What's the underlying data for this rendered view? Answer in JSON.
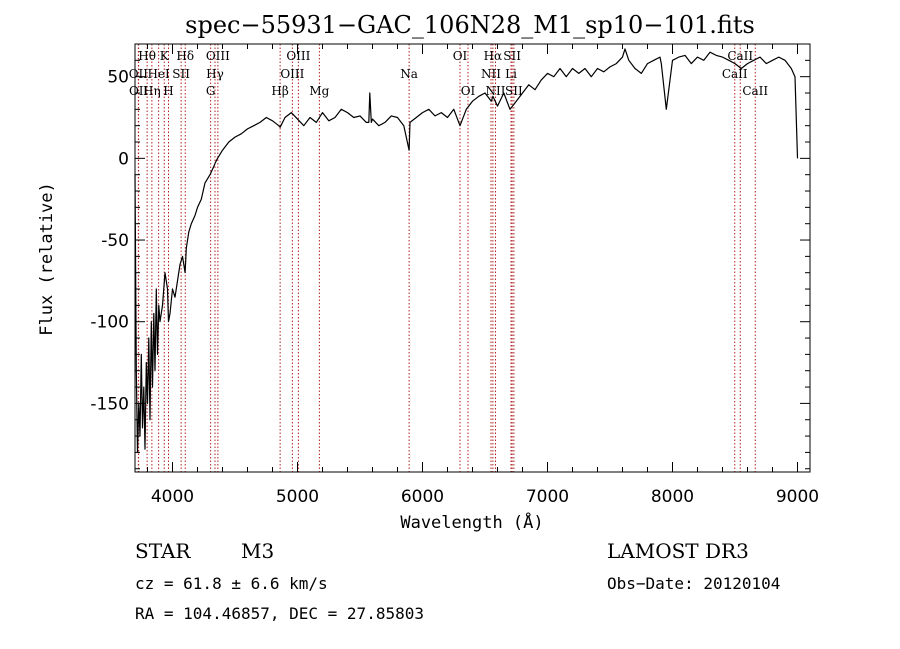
{
  "chart_data": {
    "type": "line",
    "title": "spec−55931−GAC_106N28_M1_sp10−101.fits",
    "xlabel": "Wavelength (Å)",
    "ylabel": "Flux (relative)",
    "xlim": [
      3700,
      9100
    ],
    "ylim": [
      -192,
      70
    ],
    "x_ticks": [
      4000,
      5000,
      6000,
      7000,
      8000,
      9000
    ],
    "y_ticks": [
      -150,
      -100,
      -50,
      0,
      50
    ],
    "series": [
      {
        "color": "#000000",
        "x": [
          3700,
          3710,
          3720,
          3730,
          3740,
          3750,
          3760,
          3770,
          3780,
          3790,
          3800,
          3810,
          3820,
          3830,
          3840,
          3850,
          3860,
          3870,
          3880,
          3890,
          3900,
          3920,
          3940,
          3960,
          3968,
          3980,
          4000,
          4020,
          4040,
          4060,
          4080,
          4101,
          4110,
          4130,
          4150,
          4180,
          4200,
          4230,
          4260,
          4300,
          4330,
          4340,
          4360,
          4400,
          4450,
          4500,
          4550,
          4600,
          4650,
          4700,
          4750,
          4800,
          4850,
          4861,
          4900,
          4950,
          5000,
          5050,
          5100,
          5150,
          5200,
          5250,
          5300,
          5350,
          5400,
          5450,
          5500,
          5550,
          5570,
          5578,
          5590,
          5600,
          5650,
          5700,
          5750,
          5800,
          5850,
          5893,
          5900,
          5950,
          6000,
          6050,
          6100,
          6150,
          6200,
          6250,
          6300,
          6350,
          6400,
          6450,
          6500,
          6550,
          6563,
          6600,
          6650,
          6700,
          6750,
          6800,
          6850,
          6900,
          6950,
          7000,
          7050,
          7100,
          7150,
          7200,
          7250,
          7300,
          7350,
          7400,
          7450,
          7500,
          7550,
          7600,
          7620,
          7650,
          7700,
          7750,
          7800,
          7850,
          7900,
          7910,
          7950,
          8000,
          8050,
          8100,
          8150,
          8200,
          8250,
          8300,
          8350,
          8400,
          8450,
          8500,
          8550,
          8600,
          8650,
          8700,
          8750,
          8800,
          8850,
          8900,
          8950,
          8980,
          9000
        ],
        "y": [
          -10,
          -130,
          -180,
          -150,
          -170,
          -120,
          -165,
          -140,
          -178,
          -125,
          -150,
          -110,
          -160,
          -100,
          -140,
          -95,
          -130,
          -80,
          -120,
          -90,
          -100,
          -90,
          -70,
          -80,
          -100,
          -95,
          -80,
          -85,
          -75,
          -65,
          -60,
          -70,
          -55,
          -45,
          -40,
          -35,
          -30,
          -25,
          -15,
          -10,
          -5,
          -3,
          0,
          5,
          10,
          13,
          15,
          18,
          20,
          22,
          25,
          23,
          20,
          19,
          25,
          28,
          24,
          20,
          25,
          22,
          28,
          23,
          25,
          30,
          28,
          25,
          26,
          22,
          22,
          40,
          22,
          24,
          20,
          22,
          26,
          25,
          20,
          5,
          22,
          25,
          28,
          30,
          26,
          28,
          25,
          30,
          20,
          30,
          35,
          38,
          40,
          35,
          38,
          32,
          40,
          30,
          35,
          40,
          45,
          42,
          48,
          52,
          50,
          55,
          50,
          55,
          52,
          55,
          50,
          55,
          53,
          56,
          58,
          62,
          67,
          60,
          55,
          52,
          58,
          60,
          62,
          58,
          30,
          60,
          62,
          63,
          58,
          62,
          60,
          65,
          63,
          62,
          60,
          58,
          55,
          58,
          60,
          62,
          58,
          60,
          62,
          60,
          55,
          50,
          0
        ]
      }
    ],
    "lines": [
      {
        "label": "Hθ",
        "x": 3797,
        "row": 0
      },
      {
        "label": "OII",
        "x": 3727,
        "row": 1
      },
      {
        "label": "OII",
        "x": 3729,
        "row": 2
      },
      {
        "label": "Hη",
        "x": 3835,
        "row": 2
      },
      {
        "label": "HeI",
        "x": 3889,
        "row": 1
      },
      {
        "label": "K",
        "x": 3934,
        "row": 0
      },
      {
        "label": "H",
        "x": 3968,
        "row": 2
      },
      {
        "label": "SII",
        "x": 4069,
        "row": 1
      },
      {
        "label": "Hδ",
        "x": 4102,
        "row": 0
      },
      {
        "label": "OIII",
        "x": 4363,
        "row": 0
      },
      {
        "label": "Hγ",
        "x": 4340,
        "row": 1
      },
      {
        "label": "G",
        "x": 4305,
        "row": 2
      },
      {
        "label": "Hβ",
        "x": 4861,
        "row": 2
      },
      {
        "label": "OIII",
        "x": 5007,
        "row": 0
      },
      {
        "label": "OIII",
        "x": 4959,
        "row": 1
      },
      {
        "label": "Mg",
        "x": 5175,
        "row": 2
      },
      {
        "label": "Na",
        "x": 5893,
        "row": 1
      },
      {
        "label": "OI",
        "x": 6300,
        "row": 0
      },
      {
        "label": "OI",
        "x": 6364,
        "row": 2
      },
      {
        "label": "Hα",
        "x": 6563,
        "row": 0
      },
      {
        "label": "NII",
        "x": 6548,
        "row": 1
      },
      {
        "label": "NII",
        "x": 6584,
        "row": 2
      },
      {
        "label": "SII",
        "x": 6717,
        "row": 0
      },
      {
        "label": "Li",
        "x": 6708,
        "row": 1
      },
      {
        "label": "SII",
        "x": 6731,
        "row": 2
      },
      {
        "label": "CaII",
        "x": 8542,
        "row": 0
      },
      {
        "label": "CaII",
        "x": 8498,
        "row": 1
      },
      {
        "label": "CaII",
        "x": 8662,
        "row": 2
      }
    ]
  },
  "info": {
    "class": "STAR",
    "subclass": "M3",
    "survey": "LAMOST DR3",
    "cz": "cz = 61.8 ± 6.6 km/s",
    "obs_date": "Obs−Date: 20120104",
    "radec": "RA = 104.46857, DEC =  27.85803"
  }
}
